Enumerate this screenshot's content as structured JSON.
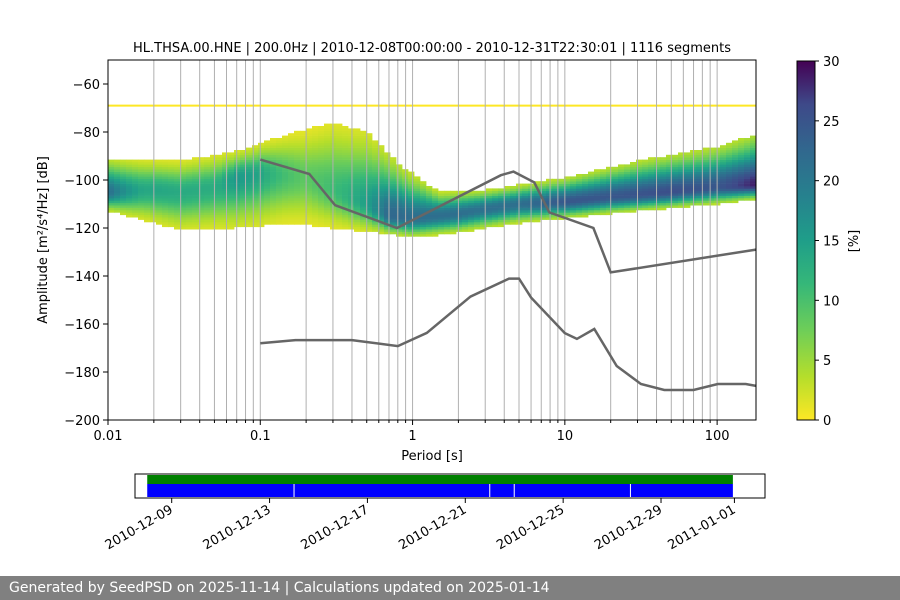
{
  "chart_data": {
    "type": "heatmap",
    "title": "HL.THSA.00.HNE | 200.0Hz | 2010-12-08T00:00:00 - 2010-12-31T22:30:01 | 1116 segments",
    "xlabel": "Period [s]",
    "ylabel": "Amplitude [m²/s⁴/Hz] [dB]",
    "x_scale": "log",
    "xlim": [
      0.01,
      180
    ],
    "ylim": [
      -200,
      -50
    ],
    "x_ticks": [
      {
        "value": 0.01,
        "label": "0.01"
      },
      {
        "value": 0.1,
        "label": "0.1"
      },
      {
        "value": 1,
        "label": "1"
      },
      {
        "value": 10,
        "label": "10"
      },
      {
        "value": 100,
        "label": "100"
      }
    ],
    "y_ticks": [
      -60,
      -80,
      -100,
      -120,
      -140,
      -160,
      -180,
      -200
    ],
    "grid": "vertical lines at minor log period ticks",
    "colorbar": {
      "label": "[%]",
      "min": 0,
      "max": 30,
      "ticks": [
        0,
        5,
        10,
        15,
        20,
        25,
        30
      ],
      "colormap": "viridis_r"
    },
    "mode_curve": [
      {
        "x": 0.01,
        "y": -105
      },
      {
        "x": 0.02,
        "y": -104
      },
      {
        "x": 0.03,
        "y": -105
      },
      {
        "x": 0.05,
        "y": -103
      },
      {
        "x": 0.07,
        "y": -99
      },
      {
        "x": 0.1,
        "y": -97
      },
      {
        "x": 0.15,
        "y": -98
      },
      {
        "x": 0.2,
        "y": -99
      },
      {
        "x": 0.3,
        "y": -104
      },
      {
        "x": 0.5,
        "y": -110
      },
      {
        "x": 0.7,
        "y": -115
      },
      {
        "x": 1,
        "y": -116
      },
      {
        "x": 2,
        "y": -114
      },
      {
        "x": 3,
        "y": -112
      },
      {
        "x": 5,
        "y": -110
      },
      {
        "x": 10,
        "y": -109
      },
      {
        "x": 20,
        "y": -107
      },
      {
        "x": 50,
        "y": -105
      },
      {
        "x": 100,
        "y": -103
      },
      {
        "x": 180,
        "y": -102
      }
    ],
    "upper_band": [
      {
        "x": 0.01,
        "y": -91
      },
      {
        "x": 0.03,
        "y": -92
      },
      {
        "x": 0.07,
        "y": -88
      },
      {
        "x": 0.15,
        "y": -81
      },
      {
        "x": 0.3,
        "y": -76
      },
      {
        "x": 0.5,
        "y": -80
      },
      {
        "x": 0.8,
        "y": -93
      },
      {
        "x": 1.5,
        "y": -105
      },
      {
        "x": 3,
        "y": -104
      },
      {
        "x": 10,
        "y": -99
      },
      {
        "x": 30,
        "y": -92
      },
      {
        "x": 100,
        "y": -86
      },
      {
        "x": 180,
        "y": -81
      }
    ],
    "lower_band": [
      {
        "x": 0.01,
        "y": -113
      },
      {
        "x": 0.03,
        "y": -121
      },
      {
        "x": 0.07,
        "y": -120
      },
      {
        "x": 0.15,
        "y": -118
      },
      {
        "x": 0.3,
        "y": -120
      },
      {
        "x": 0.6,
        "y": -122
      },
      {
        "x": 1,
        "y": -124
      },
      {
        "x": 2,
        "y": -122
      },
      {
        "x": 5,
        "y": -118
      },
      {
        "x": 20,
        "y": -114
      },
      {
        "x": 100,
        "y": -110
      },
      {
        "x": 180,
        "y": -108
      }
    ],
    "constant_line": {
      "y": -69,
      "x_from": 0.01,
      "x_to": 180
    },
    "noise_models": [
      {
        "points": [
          {
            "x": 0.1,
            "y": -91.5
          },
          {
            "x": 0.21,
            "y": -97.5
          },
          {
            "x": 0.31,
            "y": -110.5
          },
          {
            "x": 0.79,
            "y": -120
          },
          {
            "x": 3.8,
            "y": -98
          },
          {
            "x": 4.6,
            "y": -96.5
          },
          {
            "x": 6.3,
            "y": -101
          },
          {
            "x": 7.9,
            "y": -113.5
          },
          {
            "x": 15.4,
            "y": -120
          },
          {
            "x": 20,
            "y": -138.5
          },
          {
            "x": 180,
            "y": -129
          }
        ]
      },
      {
        "points": [
          {
            "x": 0.1,
            "y": -168
          },
          {
            "x": 0.17,
            "y": -166.7
          },
          {
            "x": 0.4,
            "y": -166.7
          },
          {
            "x": 0.8,
            "y": -169.2
          },
          {
            "x": 1.24,
            "y": -163.7
          },
          {
            "x": 2.4,
            "y": -148.6
          },
          {
            "x": 4.3,
            "y": -141.1
          },
          {
            "x": 5,
            "y": -141.1
          },
          {
            "x": 6,
            "y": -149
          },
          {
            "x": 10,
            "y": -163.8
          },
          {
            "x": 12,
            "y": -166.2
          },
          {
            "x": 15.6,
            "y": -162.1
          },
          {
            "x": 21.9,
            "y": -177.5
          },
          {
            "x": 31.6,
            "y": -185
          },
          {
            "x": 45,
            "y": -187.5
          },
          {
            "x": 70,
            "y": -187.5
          },
          {
            "x": 101,
            "y": -185
          },
          {
            "x": 154,
            "y": -185
          },
          {
            "x": 180,
            "y": -185.8
          }
        ]
      }
    ],
    "timeline": {
      "start": "2010-12-07T12:00:00",
      "end": "2011-01-02T06:00:00",
      "coverage_green": [
        {
          "from": "2010-12-08T00:00:00",
          "to": "2010-12-31T22:30:01"
        }
      ],
      "coverage_blue": [
        {
          "from": "2010-12-08T00:00:00",
          "to": "2010-12-31T22:30:01"
        }
      ],
      "gaps": [
        "2010-12-14T00:00:00",
        "2010-12-22T00:00:00",
        "2010-12-23T00:00:00",
        "2010-12-27T18:00:00"
      ],
      "tick_labels": [
        {
          "date": "2010-12-09",
          "label": "2010-12-09"
        },
        {
          "date": "2010-12-13",
          "label": "2010-12-13"
        },
        {
          "date": "2010-12-17",
          "label": "2010-12-17"
        },
        {
          "date": "2010-12-21",
          "label": "2010-12-21"
        },
        {
          "date": "2010-12-25",
          "label": "2010-12-25"
        },
        {
          "date": "2010-12-29",
          "label": "2010-12-29"
        },
        {
          "date": "2011-01-01",
          "label": "2011-01-01"
        }
      ]
    }
  },
  "footer": {
    "text": "Generated by SeedPSD on 2025-11-14 | Calculations updated on 2025-01-14"
  },
  "colors": {
    "noise_model": "#666666",
    "grid": "#b0b0b0",
    "coverage_green": "#008000",
    "coverage_blue": "#0000ff",
    "footer_bg": "#808080"
  }
}
